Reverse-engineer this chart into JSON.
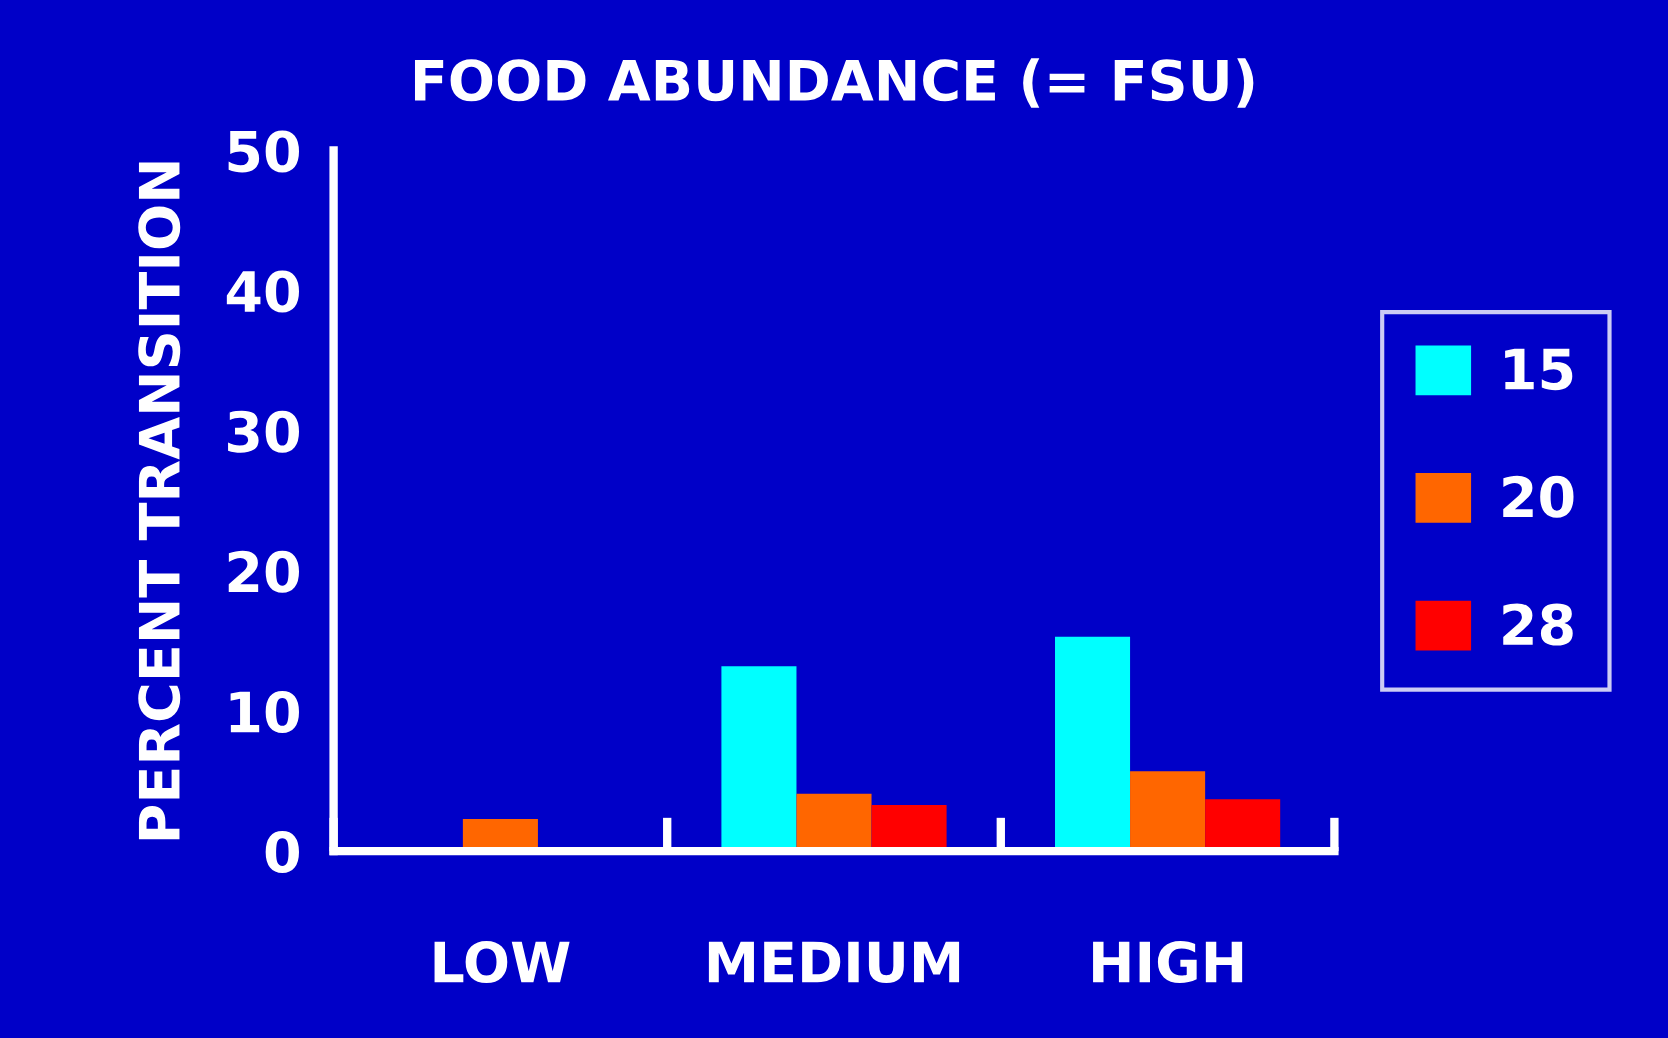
{
  "chart_data": {
    "type": "bar",
    "title": "FOOD ABUNDANCE (= FSU)",
    "ylabel": "PERCENT TRANSITION",
    "categories": [
      "LOW",
      "MEDIUM",
      "HIGH"
    ],
    "series": [
      {
        "name": "15",
        "color": "#00ffff",
        "values": [
          0,
          13.2,
          15.3
        ]
      },
      {
        "name": "20",
        "color": "#ff6600",
        "values": [
          2.3,
          4.1,
          5.7
        ]
      },
      {
        "name": "28",
        "color": "#ff0000",
        "values": [
          0,
          3.3,
          3.7
        ]
      }
    ],
    "ylim": [
      0,
      50
    ],
    "yticks": [
      0,
      10,
      20,
      30,
      40,
      50
    ],
    "grid": false,
    "legend": "right"
  }
}
